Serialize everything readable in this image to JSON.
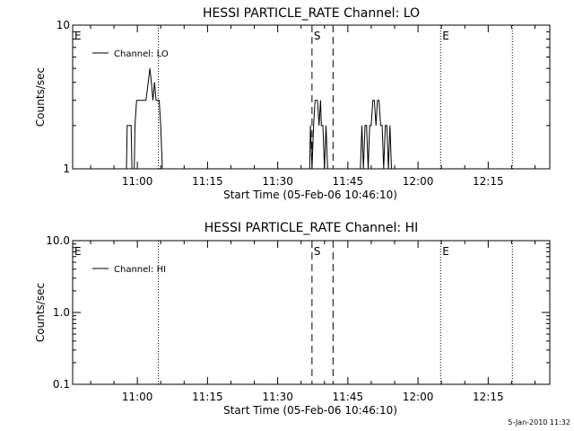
{
  "chart_data": [
    {
      "type": "line",
      "title": "HESSI PARTICLE_RATE Channel: LO",
      "xlabel": "Start Time (05-Feb-06 10:46:10)",
      "ylabel": "Counts/sec",
      "y_scale": "log",
      "ylim": [
        1,
        10
      ],
      "y_ticks": [
        "1",
        "10"
      ],
      "x_ticks": [
        "11:00",
        "11:15",
        "11:30",
        "11:45",
        "12:00",
        "12:15"
      ],
      "legend": "Channel: LO",
      "legend_position": "top-left",
      "markers": [
        {
          "label": "E",
          "time": "10:46:10",
          "style": "dotted"
        },
        {
          "label": "",
          "time": "11:04:30",
          "style": "dotted"
        },
        {
          "label": "S",
          "time": "11:37:20",
          "style": "dashed"
        },
        {
          "label": "",
          "time": "11:41:50",
          "style": "dashed"
        },
        {
          "label": "E",
          "time": "12:04:50",
          "style": "dotted"
        },
        {
          "label": "",
          "time": "12:20:10",
          "style": "dotted"
        }
      ],
      "series": [
        {
          "name": "Channel: LO",
          "points": [
            {
              "t": "10:57:40",
              "v": 1.0
            },
            {
              "t": "10:57:50",
              "v": 2.0
            },
            {
              "t": "10:58:40",
              "v": 2.0
            },
            {
              "t": "10:58:50",
              "v": 1.0
            },
            {
              "t": "10:59:20",
              "v": 1.0
            },
            {
              "t": "10:59:30",
              "v": 2.0
            },
            {
              "t": "10:59:50",
              "v": 3.0
            },
            {
              "t": "11:01:50",
              "v": 3.0
            },
            {
              "t": "11:02:20",
              "v": 4.0
            },
            {
              "t": "11:02:40",
              "v": 5.0
            },
            {
              "t": "11:03:00",
              "v": 4.0
            },
            {
              "t": "11:03:20",
              "v": 3.0
            },
            {
              "t": "11:03:40",
              "v": 4.0
            },
            {
              "t": "11:04:00",
              "v": 3.0
            },
            {
              "t": "11:04:40",
              "v": 3.0
            },
            {
              "t": "11:05:00",
              "v": 2.0
            },
            {
              "t": "11:05:20",
              "v": 1.0
            },
            {
              "t": "11:36:50",
              "v": 1.0
            },
            {
              "t": "11:37:00",
              "v": 2.0
            },
            {
              "t": "11:37:20",
              "v": 1.0
            },
            {
              "t": "11:37:40",
              "v": 2.0
            },
            {
              "t": "11:38:00",
              "v": 3.0
            },
            {
              "t": "11:38:30",
              "v": 3.0
            },
            {
              "t": "11:38:50",
              "v": 2.0
            },
            {
              "t": "11:39:10",
              "v": 3.0
            },
            {
              "t": "11:39:20",
              "v": 2.0
            },
            {
              "t": "11:39:40",
              "v": 2.0
            },
            {
              "t": "11:40:00",
              "v": 1.0
            },
            {
              "t": "11:40:20",
              "v": 2.0
            },
            {
              "t": "11:40:40",
              "v": 1.0
            },
            {
              "t": "11:47:40",
              "v": 1.0
            },
            {
              "t": "11:48:00",
              "v": 2.0
            },
            {
              "t": "11:48:20",
              "v": 1.0
            },
            {
              "t": "11:48:40",
              "v": 2.0
            },
            {
              "t": "11:49:00",
              "v": 2.0
            },
            {
              "t": "11:49:20",
              "v": 1.0
            },
            {
              "t": "11:49:40",
              "v": 2.0
            },
            {
              "t": "11:50:00",
              "v": 2.0
            },
            {
              "t": "11:50:20",
              "v": 3.0
            },
            {
              "t": "11:50:40",
              "v": 3.0
            },
            {
              "t": "11:51:00",
              "v": 2.0
            },
            {
              "t": "11:51:20",
              "v": 3.0
            },
            {
              "t": "11:51:40",
              "v": 3.0
            },
            {
              "t": "11:52:00",
              "v": 2.0
            },
            {
              "t": "11:52:20",
              "v": 2.0
            },
            {
              "t": "11:52:40",
              "v": 1.0
            },
            {
              "t": "11:53:00",
              "v": 2.0
            },
            {
              "t": "11:53:20",
              "v": 2.0
            },
            {
              "t": "11:53:40",
              "v": 1.0
            },
            {
              "t": "11:54:00",
              "v": 2.0
            },
            {
              "t": "11:54:20",
              "v": 1.0
            }
          ]
        }
      ]
    },
    {
      "type": "line",
      "title": "HESSI PARTICLE_RATE Channel: HI",
      "xlabel": "Start Time (05-Feb-06 10:46:10)",
      "ylabel": "Counts/sec",
      "y_scale": "log",
      "ylim": [
        0.1,
        10
      ],
      "y_ticks": [
        "0.1",
        "1.0",
        "10.0"
      ],
      "x_ticks": [
        "11:00",
        "11:15",
        "11:30",
        "11:45",
        "12:00",
        "12:15"
      ],
      "legend": "Channel: HI",
      "legend_position": "top-left",
      "markers": [
        {
          "label": "E",
          "time": "10:46:10",
          "style": "dotted"
        },
        {
          "label": "",
          "time": "11:04:30",
          "style": "dotted"
        },
        {
          "label": "S",
          "time": "11:37:20",
          "style": "dashed"
        },
        {
          "label": "",
          "time": "11:41:50",
          "style": "dashed"
        },
        {
          "label": "E",
          "time": "12:04:50",
          "style": "dotted"
        },
        {
          "label": "",
          "time": "12:20:10",
          "style": "dotted"
        }
      ],
      "series": [
        {
          "name": "Channel: HI",
          "points": []
        }
      ]
    }
  ],
  "footer": "5-Jan-2010 11:32"
}
